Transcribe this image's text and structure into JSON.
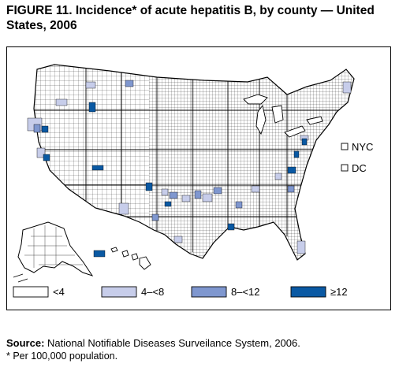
{
  "figure": {
    "title_line1": "FIGURE 11. Incidence* of acute hepatitis B, by county — United",
    "title_line2": "States, 2006"
  },
  "map": {
    "inset_labels": [
      "NYC",
      "DC"
    ],
    "legend": [
      {
        "label": "<4",
        "color": "#ffffff"
      },
      {
        "label": "4–<8",
        "color": "#c7cdea"
      },
      {
        "label": "8–<12",
        "color": "#7f97cf"
      },
      {
        "label": "≥12",
        "color": "#0a59a3",
        "underline_glyph": true,
        "glyph": ">",
        "rest": "12"
      }
    ]
  },
  "source": {
    "label": "Source:",
    "text": " National Notifiable Diseases Surveilance System, 2006."
  },
  "footnote": "* Per 100,000 population."
}
